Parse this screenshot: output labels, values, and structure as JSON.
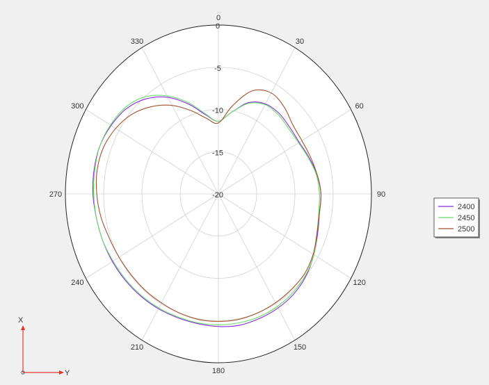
{
  "chart_data": {
    "type": "polar-line",
    "angle_ticks": [
      "0",
      "30",
      "60",
      "90",
      "120",
      "150",
      "180",
      "210",
      "240",
      "270",
      "300",
      "330"
    ],
    "radial_ticks": [
      "-20",
      "-15",
      "-10",
      "-5",
      "0"
    ],
    "rlim": [
      -20,
      0
    ],
    "angle_direction": "clockwise",
    "zero_at": "top",
    "grid": true,
    "legend_position": "right",
    "series": [
      {
        "name": "2400",
        "color": "#8a2be2",
        "points": [
          [
            0,
            -11.4
          ],
          [
            10,
            -10.2
          ],
          [
            20,
            -8.5
          ],
          [
            30,
            -7.7
          ],
          [
            40,
            -7.6
          ],
          [
            50,
            -7.8
          ],
          [
            60,
            -7.8
          ],
          [
            70,
            -7.4
          ],
          [
            80,
            -6.9
          ],
          [
            90,
            -6.6
          ],
          [
            100,
            -6.6
          ],
          [
            110,
            -6.2
          ],
          [
            120,
            -5.6
          ],
          [
            130,
            -5.0
          ],
          [
            140,
            -4.6
          ],
          [
            150,
            -4.4
          ],
          [
            160,
            -4.3
          ],
          [
            170,
            -4.2
          ],
          [
            180,
            -4.3
          ],
          [
            190,
            -4.4
          ],
          [
            200,
            -4.4
          ],
          [
            210,
            -4.3
          ],
          [
            220,
            -4.2
          ],
          [
            230,
            -4.1
          ],
          [
            240,
            -4.0
          ],
          [
            250,
            -3.9
          ],
          [
            260,
            -3.8
          ],
          [
            270,
            -3.6
          ],
          [
            280,
            -3.5
          ],
          [
            290,
            -3.5
          ],
          [
            300,
            -3.8
          ],
          [
            310,
            -4.3
          ],
          [
            320,
            -5.3
          ],
          [
            330,
            -6.8
          ],
          [
            340,
            -8.7
          ],
          [
            350,
            -10.5
          ]
        ]
      },
      {
        "name": "2450",
        "color": "#66dd66",
        "points": [
          [
            0,
            -11.4
          ],
          [
            10,
            -10.2
          ],
          [
            20,
            -8.6
          ],
          [
            30,
            -7.8
          ],
          [
            40,
            -7.8
          ],
          [
            50,
            -8.0
          ],
          [
            60,
            -7.9
          ],
          [
            70,
            -7.5
          ],
          [
            80,
            -7.0
          ],
          [
            90,
            -6.8
          ],
          [
            100,
            -6.7
          ],
          [
            110,
            -6.3
          ],
          [
            120,
            -5.6
          ],
          [
            130,
            -5.1
          ],
          [
            140,
            -4.8
          ],
          [
            150,
            -4.6
          ],
          [
            160,
            -4.5
          ],
          [
            170,
            -4.5
          ],
          [
            180,
            -4.5
          ],
          [
            190,
            -4.5
          ],
          [
            200,
            -4.5
          ],
          [
            210,
            -4.4
          ],
          [
            220,
            -4.3
          ],
          [
            230,
            -4.2
          ],
          [
            240,
            -4.1
          ],
          [
            250,
            -3.9
          ],
          [
            260,
            -3.8
          ],
          [
            270,
            -3.7
          ],
          [
            280,
            -3.6
          ],
          [
            290,
            -3.5
          ],
          [
            300,
            -3.7
          ],
          [
            310,
            -4.1
          ],
          [
            320,
            -5.0
          ],
          [
            330,
            -6.6
          ],
          [
            340,
            -8.5
          ],
          [
            350,
            -10.4
          ]
        ]
      },
      {
        "name": "2500",
        "color": "#a0522d",
        "points": [
          [
            0,
            -11.6
          ],
          [
            10,
            -9.4
          ],
          [
            20,
            -7.0
          ],
          [
            30,
            -6.2
          ],
          [
            40,
            -6.6
          ],
          [
            50,
            -7.3
          ],
          [
            60,
            -7.4
          ],
          [
            70,
            -7.2
          ],
          [
            80,
            -6.9
          ],
          [
            90,
            -6.6
          ],
          [
            100,
            -6.6
          ],
          [
            110,
            -6.3
          ],
          [
            120,
            -5.7
          ],
          [
            130,
            -5.3
          ],
          [
            140,
            -5.2
          ],
          [
            150,
            -5.1
          ],
          [
            160,
            -5.0
          ],
          [
            170,
            -4.9
          ],
          [
            180,
            -4.9
          ],
          [
            190,
            -4.9
          ],
          [
            200,
            -5.0
          ],
          [
            210,
            -5.1
          ],
          [
            220,
            -5.1
          ],
          [
            230,
            -5.1
          ],
          [
            240,
            -5.0
          ],
          [
            250,
            -4.8
          ],
          [
            260,
            -4.4
          ],
          [
            270,
            -4.1
          ],
          [
            280,
            -3.9
          ],
          [
            290,
            -4.0
          ],
          [
            300,
            -4.5
          ],
          [
            310,
            -5.3
          ],
          [
            320,
            -6.5
          ],
          [
            330,
            -7.9
          ],
          [
            340,
            -9.5
          ],
          [
            350,
            -10.9
          ]
        ]
      }
    ]
  },
  "axes_icon": {
    "x_label": "X",
    "y_label": "Y",
    "colors": {
      "arrow": "#e8332a"
    }
  },
  "style": {
    "colors": {
      "background": "#f0f0f0",
      "plot_bg": "#ffffff",
      "grid": "#d0d0d0",
      "outer": "#222222"
    }
  }
}
